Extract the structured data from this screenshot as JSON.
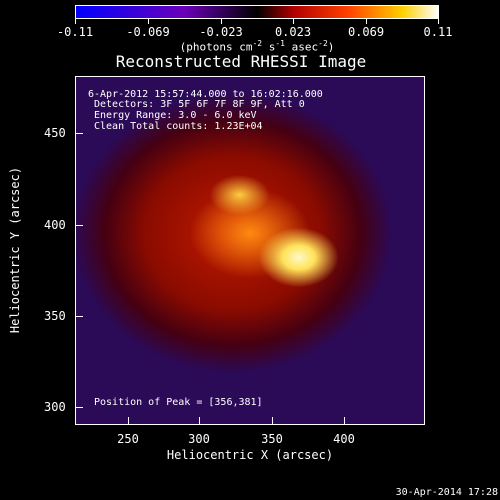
{
  "colorbar": {
    "tick_labels": [
      "-0.11",
      "-0.069",
      "-0.023",
      "0.023",
      "0.069",
      "0.11"
    ],
    "units_prefix": "(photons cm",
    "units_exp1": "-2",
    "units_mid1": " s",
    "units_exp2": "-1",
    "units_mid2": " asec",
    "units_exp3": "-2",
    "units_suffix": ")",
    "colors": [
      "#0000ff",
      "#7b00c8",
      "#ff0000",
      "#ff8000",
      "#ffff80",
      "#ffffff"
    ]
  },
  "title": "Reconstructed RHESSI Image",
  "annotations": {
    "line1": "6-Apr-2012 15:57:44.000 to 16:02:16.000",
    "line2": "Detectors: 3F 5F 6F 7F 8F 9F, Att 0",
    "line3": "Energy Range: 3.0 - 6.0 keV",
    "line4": "Clean     Total counts: 1.23E+04",
    "peak": "Position of Peak = [356,381]"
  },
  "x_axis": {
    "label": "Heliocentric X (arcsec)",
    "tick_labels": [
      "250",
      "300",
      "350",
      "400"
    ]
  },
  "y_axis": {
    "label": "Heliocentric Y (arcsec)",
    "tick_labels": [
      "450",
      "400",
      "350",
      "300"
    ]
  },
  "timestamp": "30-Apr-2014 17:28"
}
